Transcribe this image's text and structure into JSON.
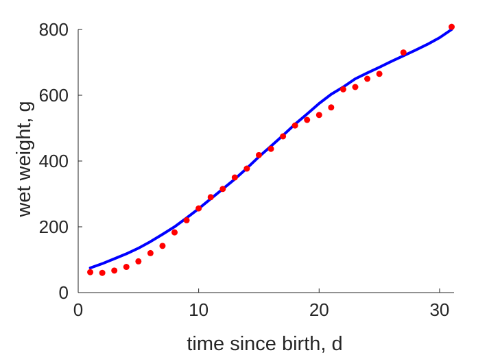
{
  "chart_data": {
    "type": "scatter",
    "title": "",
    "xlabel": "time since birth, d",
    "ylabel": "wet weight, g",
    "xlim": [
      0,
      31.2
    ],
    "ylim": [
      0,
      800
    ],
    "xticks": [
      0,
      10,
      20,
      30
    ],
    "yticks": [
      0,
      200,
      400,
      600,
      800
    ],
    "xtick_labels": [
      "0",
      "10",
      "20",
      "30"
    ],
    "ytick_labels": [
      "0",
      "200",
      "400",
      "600",
      "800"
    ],
    "grid": false,
    "legend": "none",
    "colors": {
      "points": "#ff0000",
      "line": "#0000ff",
      "axis": "#262626"
    },
    "series": [
      {
        "type": "scatter",
        "x": [
          1,
          2,
          3,
          4,
          5,
          6,
          7,
          8,
          9,
          10,
          11,
          12,
          13,
          14,
          15,
          16,
          17,
          18,
          19,
          20,
          21,
          22,
          23,
          24,
          25,
          27,
          31
        ],
        "y": [
          62,
          60,
          67,
          78,
          95,
          120,
          142,
          183,
          220,
          256,
          290,
          315,
          350,
          377,
          418,
          437,
          475,
          508,
          525,
          540,
          563,
          618,
          625,
          650,
          665,
          730,
          808
        ]
      },
      {
        "type": "line",
        "x": [
          1,
          2,
          3,
          4,
          5,
          6,
          7,
          8,
          9,
          10,
          11,
          12,
          13,
          14,
          15,
          16,
          17,
          18,
          19,
          20,
          21,
          22,
          23,
          24,
          25,
          26,
          27,
          28,
          29,
          30,
          31
        ],
        "y": [
          75,
          88,
          103,
          118,
          135,
          155,
          177,
          200,
          227,
          255,
          285,
          315,
          345,
          378,
          413,
          445,
          478,
          512,
          543,
          575,
          603,
          625,
          650,
          668,
          685,
          703,
          720,
          737,
          755,
          775,
          800
        ]
      }
    ]
  }
}
